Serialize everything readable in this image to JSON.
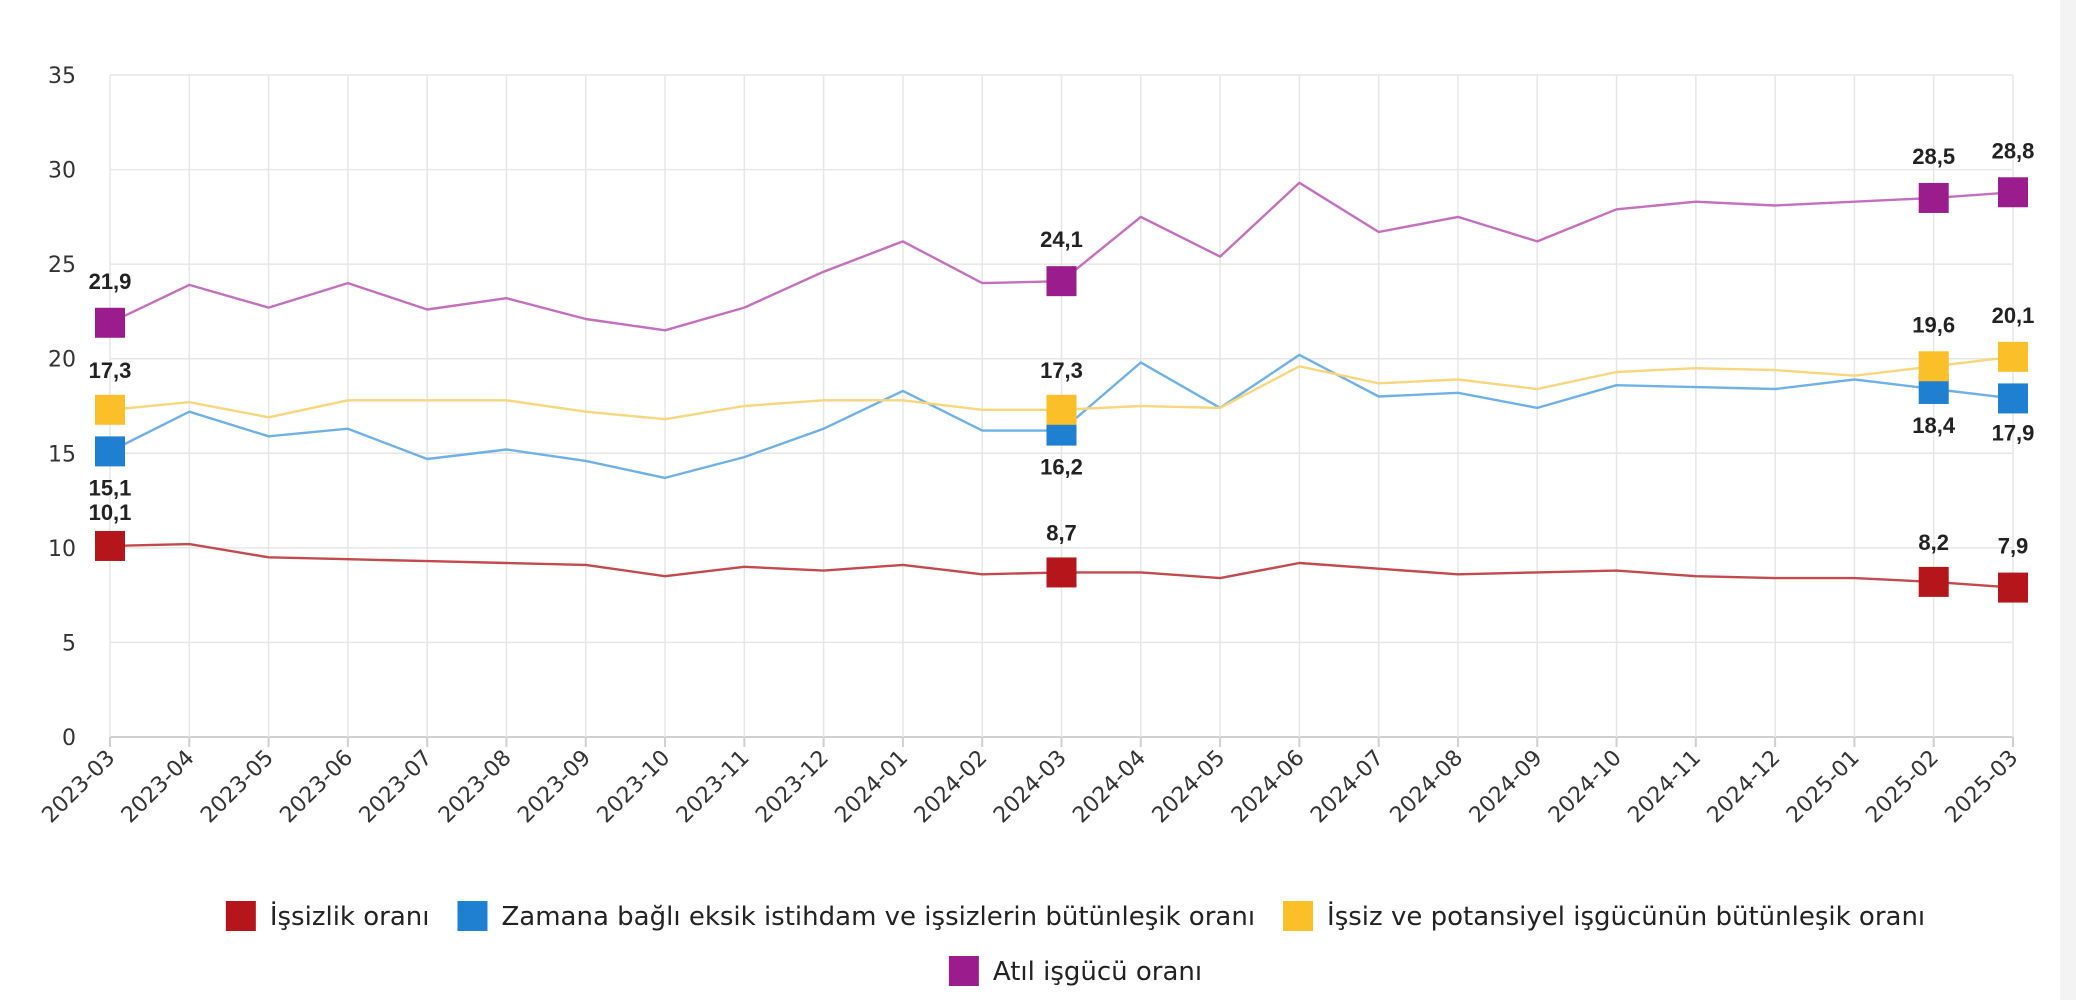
{
  "chart_data": {
    "type": "line",
    "x": [
      "2023-03",
      "2023-04",
      "2023-05",
      "2023-06",
      "2023-07",
      "2023-08",
      "2023-09",
      "2023-10",
      "2023-11",
      "2023-12",
      "2024-01",
      "2024-02",
      "2024-03",
      "2024-04",
      "2024-05",
      "2024-06",
      "2024-07",
      "2024-08",
      "2024-09",
      "2024-10",
      "2024-11",
      "2024-12",
      "2025-01",
      "2025-02",
      "2025-03"
    ],
    "ylim": [
      0,
      35
    ],
    "yticks": [
      0,
      5,
      10,
      15,
      20,
      25,
      30,
      35
    ],
    "grid": true,
    "legend_position": "bottom",
    "series": [
      {
        "name": "İşsizlik oranı",
        "color": "#b5161c",
        "line_color": "#c24a4d",
        "values": [
          10.1,
          10.2,
          9.5,
          9.4,
          9.3,
          9.2,
          9.1,
          8.5,
          9.0,
          8.8,
          9.1,
          8.6,
          8.7,
          8.7,
          8.4,
          9.2,
          8.9,
          8.6,
          8.7,
          8.8,
          8.5,
          8.4,
          8.4,
          8.2,
          7.9
        ],
        "labels": [
          {
            "index": 0,
            "text": "10,1"
          },
          {
            "index": 12,
            "text": "8,7"
          },
          {
            "index": 23,
            "text": "8,2"
          },
          {
            "index": 24,
            "text": "7,9"
          }
        ]
      },
      {
        "name": "Zamana bağlı eksik istihdam ve işsizlerin bütünleşik oranı",
        "color": "#1f7fd1",
        "line_color": "#6fb1e6",
        "values": [
          15.1,
          17.2,
          15.9,
          16.3,
          14.7,
          15.2,
          14.6,
          13.7,
          14.8,
          16.3,
          18.3,
          16.2,
          16.2,
          19.8,
          17.4,
          20.2,
          18.0,
          18.2,
          17.4,
          18.6,
          18.5,
          18.4,
          18.9,
          18.4,
          17.9
        ],
        "labels": [
          {
            "index": 0,
            "text": "15,1"
          },
          {
            "index": 12,
            "text": "16,2"
          },
          {
            "index": 23,
            "text": "18,4"
          },
          {
            "index": 24,
            "text": "17,9"
          }
        ]
      },
      {
        "name": "İşsiz ve potansiyel işgücünün bütünleşik oranı",
        "color": "#fbbf2a",
        "line_color": "#f8d67e",
        "values": [
          17.3,
          17.7,
          16.9,
          17.8,
          17.8,
          17.8,
          17.2,
          16.8,
          17.5,
          17.8,
          17.8,
          17.3,
          17.3,
          17.5,
          17.4,
          19.6,
          18.7,
          18.9,
          18.4,
          19.3,
          19.5,
          19.4,
          19.1,
          19.6,
          20.1
        ],
        "labels": [
          {
            "index": 0,
            "text": "17,3"
          },
          {
            "index": 12,
            "text": "17,3"
          },
          {
            "index": 23,
            "text": "19,6"
          },
          {
            "index": 24,
            "text": "20,1"
          }
        ]
      },
      {
        "name": "Atıl işgücü oranı",
        "color": "#9b1c8c",
        "line_color": "#c46fbe",
        "values": [
          21.9,
          23.9,
          22.7,
          24.0,
          22.6,
          23.2,
          22.1,
          21.5,
          22.7,
          24.6,
          26.2,
          24.0,
          24.1,
          27.5,
          25.4,
          29.3,
          26.7,
          27.5,
          26.2,
          27.9,
          28.3,
          28.1,
          28.3,
          28.5,
          28.8
        ],
        "labels": [
          {
            "index": 0,
            "text": "21,9"
          },
          {
            "index": 12,
            "text": "24,1"
          },
          {
            "index": 23,
            "text": "28,5"
          },
          {
            "index": 24,
            "text": "28,8"
          }
        ]
      }
    ]
  }
}
